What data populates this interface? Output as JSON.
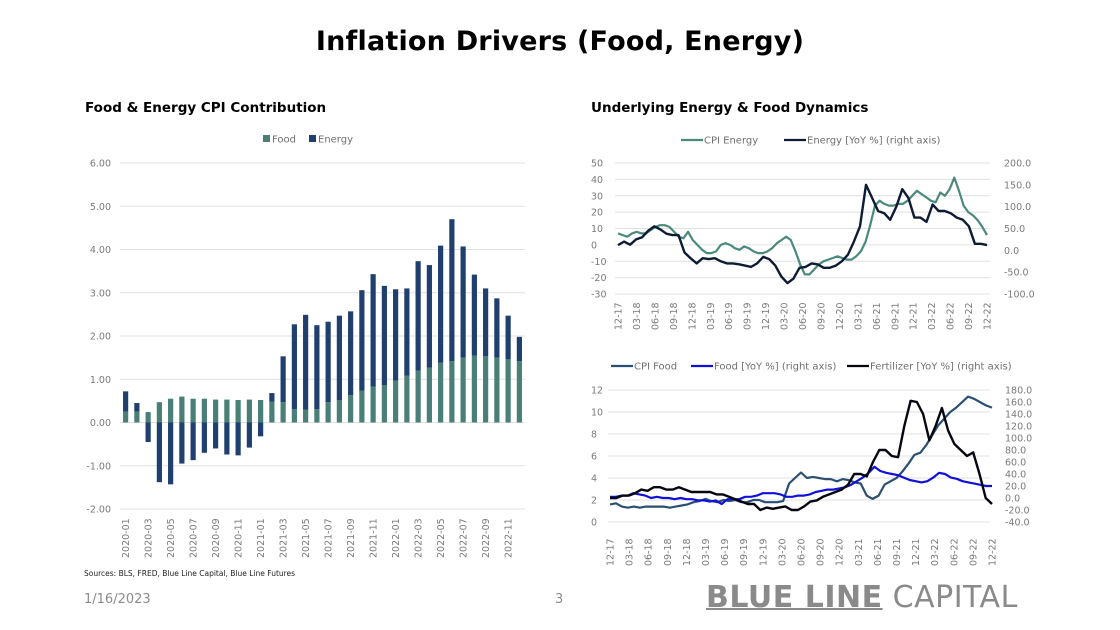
{
  "page": {
    "title": "Inflation Drivers (Food, Energy)",
    "sources": "Sources: BLS, FRED, Blue Line Capital,  Blue Line Futures",
    "date": "1/16/2023",
    "page_number": "3",
    "logo_bold": "BLUE LINE",
    "logo_light": "CAPITAL"
  },
  "colors": {
    "food": "#4a7f78",
    "energy": "#1f3f6e",
    "cpi_energy": "#4a8a7c",
    "energy_yoy": "#0d1b33",
    "cpi_food": "#2b4f73",
    "food_yoy": "#1010d8",
    "fertilizer_yoy": "#05060f",
    "grid": "#e0e0e0"
  },
  "chart_data": [
    {
      "id": "cpi-contribution",
      "type": "bar",
      "stacked": true,
      "title": "Food & Energy CPI Contribution",
      "legend": [
        "Food",
        "Energy"
      ],
      "legend_position": "top",
      "ylim": [
        -2,
        6
      ],
      "yticks": [
        "6.00",
        "5.00",
        "4.00",
        "3.00",
        "2.00",
        "1.00",
        "0.00",
        "-1.00",
        "-2.00"
      ],
      "ytick_values": [
        6,
        5,
        4,
        3,
        2,
        1,
        0,
        -1,
        -2
      ],
      "categories": [
        "2020-01",
        "2020-02",
        "2020-03",
        "2020-04",
        "2020-05",
        "2020-06",
        "2020-07",
        "2020-08",
        "2020-09",
        "2020-10",
        "2020-11",
        "2020-12",
        "2021-01",
        "2021-02",
        "2021-03",
        "2021-04",
        "2021-05",
        "2021-06",
        "2021-07",
        "2021-08",
        "2021-09",
        "2021-10",
        "2021-11",
        "2021-12",
        "2022-01",
        "2022-02",
        "2022-03",
        "2022-04",
        "2022-05",
        "2022-06",
        "2022-07",
        "2022-08",
        "2022-09",
        "2022-10",
        "2022-11",
        "2022-12"
      ],
      "xtick_labels": [
        "2020-01",
        "2020-03",
        "2020-05",
        "2020-07",
        "2020-09",
        "2020-11",
        "2021-01",
        "2021-03",
        "2021-05",
        "2021-07",
        "2021-09",
        "2021-11",
        "2022-01",
        "2022-03",
        "2022-05",
        "2022-07",
        "2022-09",
        "2022-11"
      ],
      "series": [
        {
          "name": "Food",
          "values": [
            0.25,
            0.25,
            0.24,
            0.47,
            0.55,
            0.6,
            0.55,
            0.55,
            0.53,
            0.53,
            0.52,
            0.53,
            0.52,
            0.48,
            0.47,
            0.31,
            0.3,
            0.31,
            0.47,
            0.52,
            0.63,
            0.74,
            0.83,
            0.86,
            0.97,
            1.08,
            1.2,
            1.27,
            1.38,
            1.42,
            1.5,
            1.55,
            1.53,
            1.5,
            1.46,
            1.42
          ]
        },
        {
          "name": "Energy",
          "values": [
            0.47,
            0.2,
            -0.45,
            -1.38,
            -1.43,
            -0.95,
            -0.87,
            -0.7,
            -0.6,
            -0.74,
            -0.76,
            -0.58,
            -0.32,
            0.2,
            1.06,
            1.96,
            2.19,
            1.94,
            1.86,
            1.95,
            1.94,
            2.32,
            2.6,
            2.3,
            2.11,
            2.02,
            2.53,
            2.37,
            2.71,
            3.28,
            2.57,
            1.87,
            1.57,
            1.37,
            1.01,
            0.56
          ]
        }
      ]
    },
    {
      "id": "energy-dynamics",
      "type": "line",
      "title": "Underlying Energy & Food Dynamics",
      "legend": [
        "CPI Energy",
        "Energy [YoY %] (right axis)"
      ],
      "legend_position": "top",
      "ylim": [
        -30,
        50
      ],
      "yticks": [
        "50",
        "40",
        "30",
        "20",
        "10",
        "0",
        "-10",
        "-20",
        "-30"
      ],
      "ytick_values": [
        50,
        40,
        30,
        20,
        10,
        0,
        -10,
        -20,
        -30
      ],
      "y2lim": [
        -100,
        200
      ],
      "y2ticks": [
        "200.0",
        "150.0",
        "100.0",
        "50.0",
        "0.0",
        "-50.0",
        "-100.0"
      ],
      "y2tick_values": [
        200,
        150,
        100,
        50,
        0,
        -50,
        -100
      ],
      "xtick_labels": [
        "12-17",
        "03-18",
        "06-18",
        "09-18",
        "12-18",
        "03-19",
        "06-19",
        "09-19",
        "12-19",
        "03-20",
        "06-20",
        "09-20",
        "12-20",
        "03-21",
        "06-21",
        "09-21",
        "12-21",
        "03-22",
        "06-22",
        "09-22",
        "12-22"
      ],
      "series": [
        {
          "name": "CPI Energy",
          "axis": "left",
          "values": [
            7,
            6,
            5,
            7,
            8,
            7,
            7,
            9,
            11,
            12,
            12,
            11,
            8,
            5,
            4,
            8,
            3,
            0,
            -3,
            -5,
            -5,
            -4,
            0,
            1,
            0,
            -2,
            -3,
            -1,
            -2,
            -4,
            -5,
            -5,
            -4,
            -2,
            1,
            3,
            5,
            3,
            -4,
            -12,
            -18,
            -18,
            -15,
            -12,
            -10,
            -9,
            -8,
            -7,
            -8,
            -9,
            -9,
            -7,
            -4,
            2,
            12,
            24,
            27,
            25,
            24,
            24,
            25,
            25,
            27,
            30,
            33,
            31,
            29,
            27,
            26,
            32,
            30,
            34,
            41,
            33,
            24,
            20,
            18,
            15,
            11,
            6
          ]
        },
        {
          "name": "Energy [YoY %] (right axis)",
          "axis": "right",
          "values": [
            12,
            20,
            13,
            25,
            30,
            45,
            55,
            48,
            38,
            35,
            35,
            -5,
            -18,
            -30,
            -18,
            -20,
            -18,
            -25,
            -30,
            -30,
            -32,
            -35,
            -38,
            -30,
            -15,
            -20,
            -35,
            -60,
            -75,
            -65,
            -40,
            -38,
            -30,
            -32,
            -40,
            -40,
            -35,
            -25,
            -10,
            20,
            55,
            150,
            120,
            90,
            85,
            70,
            100,
            140,
            120,
            75,
            75,
            65,
            105,
            90,
            90,
            85,
            75,
            70,
            55,
            15,
            15,
            12
          ]
        }
      ]
    },
    {
      "id": "food-dynamics",
      "type": "line",
      "legend": [
        "CPI Food",
        "Food [YoY %] (right axis)",
        "Fertilizer [YoY %] (right axis)"
      ],
      "legend_position": "top",
      "ylim": [
        0,
        12
      ],
      "yticks": [
        "12",
        "10",
        "8",
        "6",
        "4",
        "2",
        "0"
      ],
      "ytick_values": [
        12,
        10,
        8,
        6,
        4,
        2,
        0
      ],
      "y2lim": [
        -40,
        180
      ],
      "y2ticks": [
        "180.0",
        "160.0",
        "140.0",
        "120.0",
        "100.0",
        "80.0",
        "60.0",
        "40.0",
        "20.0",
        "0.0",
        "-20.0",
        "-40.0"
      ],
      "y2tick_values": [
        180,
        160,
        140,
        120,
        100,
        80,
        60,
        40,
        20,
        0,
        -20,
        -40
      ],
      "xtick_labels": [
        "12-17",
        "03-18",
        "06-18",
        "09-18",
        "12-18",
        "03-19",
        "06-19",
        "09-19",
        "12-19",
        "03-20",
        "06-20",
        "09-20",
        "12-20",
        "03-21",
        "06-21",
        "09-21",
        "12-21",
        "03-22",
        "06-22",
        "09-22",
        "12-22"
      ],
      "series": [
        {
          "name": "CPI Food",
          "axis": "left",
          "values": [
            1.6,
            1.7,
            1.4,
            1.3,
            1.4,
            1.3,
            1.4,
            1.4,
            1.4,
            1.4,
            1.3,
            1.4,
            1.5,
            1.6,
            1.8,
            1.9,
            2.1,
            1.9,
            1.8,
            2.0,
            1.9,
            2.0,
            1.8,
            1.8,
            2.0,
            2.0,
            1.8,
            1.8,
            1.8,
            1.9,
            3.5,
            4.0,
            4.5,
            4.0,
            4.1,
            4.0,
            3.9,
            3.9,
            3.7,
            3.9,
            3.8,
            3.6,
            3.5,
            2.4,
            2.1,
            2.4,
            3.4,
            3.7,
            4.0,
            4.6,
            5.3,
            6.1,
            6.3,
            7.0,
            7.9,
            8.8,
            9.4,
            10.0,
            10.4,
            10.9,
            11.4,
            11.2,
            10.9,
            10.6,
            10.4
          ]
        },
        {
          "name": "Food [YoY %] (right axis)",
          "axis": "right",
          "values": [
            2,
            2,
            4,
            4,
            8,
            6,
            4,
            0,
            2,
            0,
            0,
            -2,
            0,
            -2,
            -2,
            -4,
            -4,
            -6,
            -4,
            -10,
            -2,
            -2,
            -2,
            2,
            2,
            4,
            8,
            8,
            8,
            6,
            2,
            2,
            4,
            4,
            6,
            10,
            12,
            14,
            14,
            16,
            18,
            22,
            28,
            34,
            42,
            52,
            45,
            42,
            40,
            38,
            34,
            30,
            28,
            26,
            28,
            34,
            42,
            40,
            34,
            32,
            28,
            26,
            24,
            22,
            20,
            20
          ]
        },
        {
          "name": "Fertilizer [YoY %] (right axis)",
          "axis": "right",
          "values": [
            0,
            0,
            4,
            4,
            8,
            14,
            12,
            18,
            18,
            14,
            14,
            18,
            14,
            10,
            10,
            10,
            10,
            6,
            6,
            2,
            -2,
            -6,
            -10,
            -10,
            -20,
            -16,
            -18,
            -16,
            -14,
            -20,
            -20,
            -14,
            -6,
            -4,
            2,
            6,
            10,
            14,
            22,
            40,
            40,
            36,
            60,
            80,
            80,
            70,
            68,
            120,
            162,
            160,
            140,
            96,
            120,
            150,
            112,
            90,
            80,
            70,
            76,
            40,
            0,
            -10
          ]
        }
      ]
    }
  ]
}
